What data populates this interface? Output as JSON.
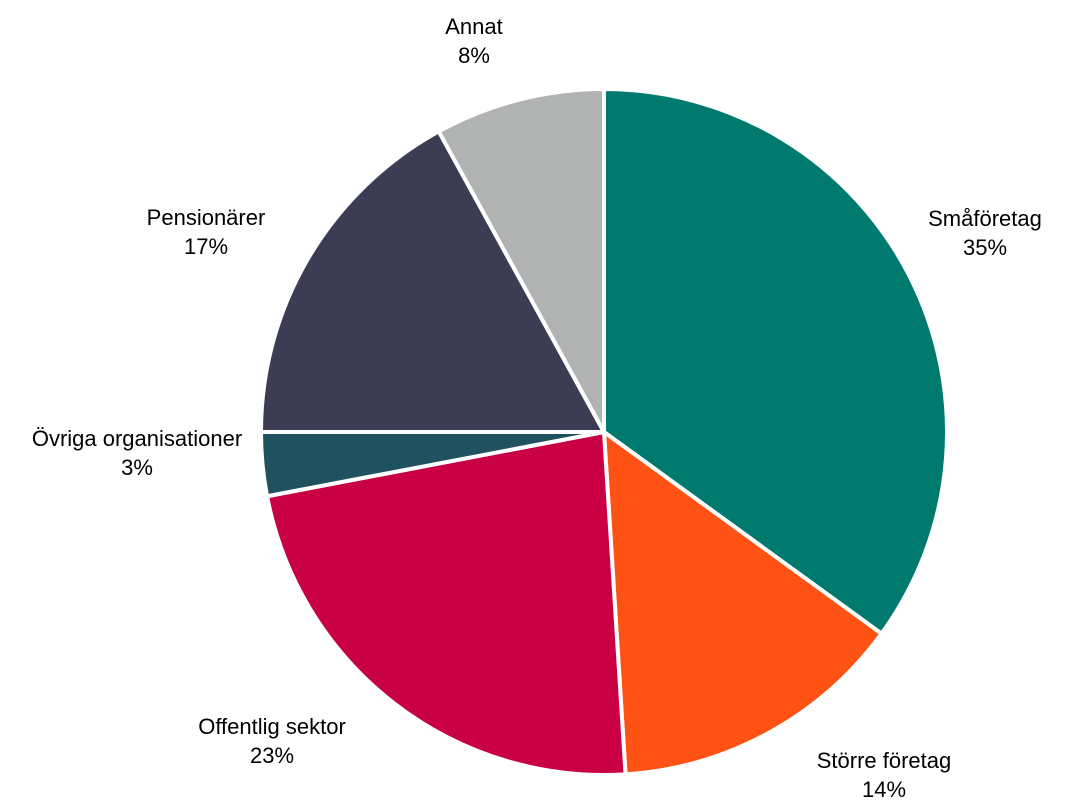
{
  "chart_data": {
    "type": "pie",
    "title": "",
    "slices": [
      {
        "label": "Småföretag",
        "value": 35,
        "value_label": "35%",
        "color": "#007A6E"
      },
      {
        "label": "Större företag",
        "value": 14,
        "value_label": "14%",
        "color": "#FF5214"
      },
      {
        "label": "Offentlig sektor",
        "value": 23,
        "value_label": "23%",
        "color": "#C90044"
      },
      {
        "label": "Övriga organisationer",
        "value": 3,
        "value_label": "3%",
        "color": "#1F525E"
      },
      {
        "label": "Pensionärer",
        "value": 17,
        "value_label": "17%",
        "color": "#3C3D54"
      },
      {
        "label": "Annat",
        "value": 8,
        "value_label": "8%",
        "color": "#B1B3B3"
      }
    ],
    "start": "12 o'clock",
    "direction": "clockwise",
    "legend": "none"
  }
}
